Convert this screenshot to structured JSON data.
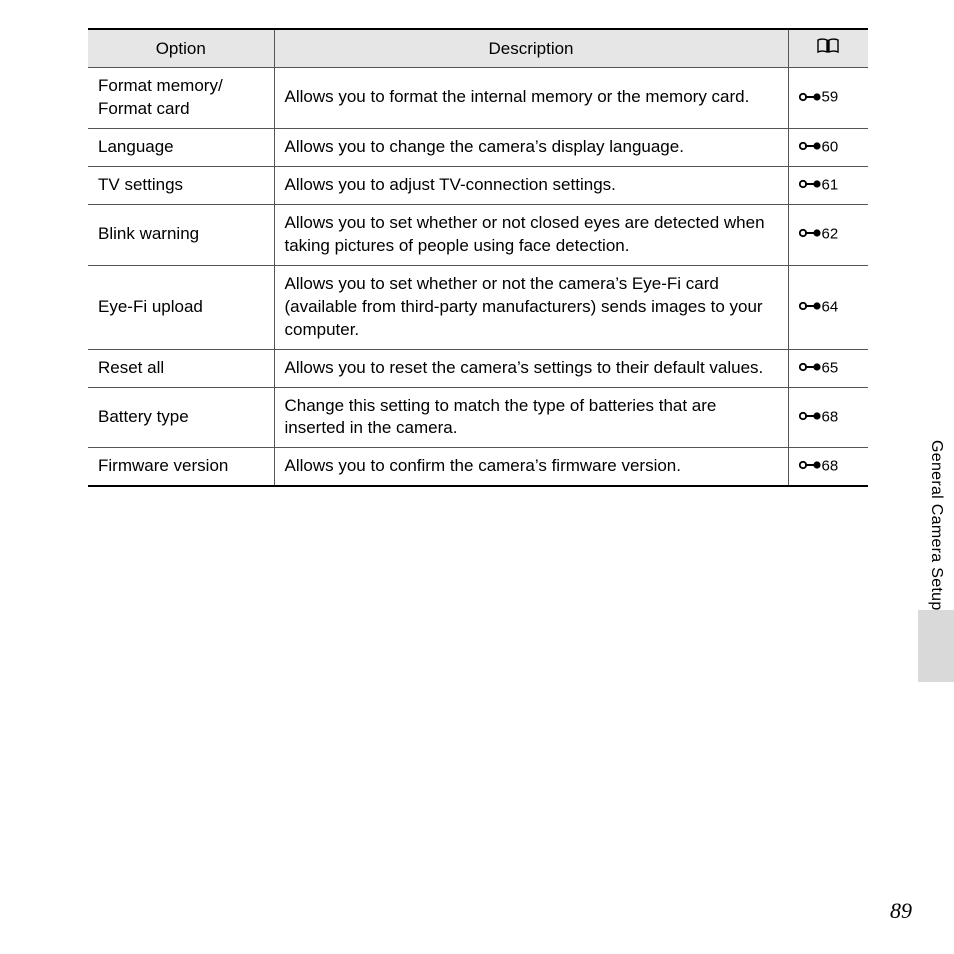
{
  "table": {
    "headers": {
      "option": "Option",
      "description": "Description"
    },
    "rows": [
      {
        "option": "Format memory/\nFormat card",
        "description": "Allows you to format the internal memory or the memory card.",
        "ref": "59"
      },
      {
        "option": "Language",
        "description": "Allows you to change the camera’s display language.",
        "ref": "60"
      },
      {
        "option": "TV settings",
        "description": "Allows you to adjust TV-connection settings.",
        "ref": "61"
      },
      {
        "option": "Blink warning",
        "description": "Allows you to set whether or not closed eyes are detected when taking pictures of people using face detection.",
        "ref": "62"
      },
      {
        "option": "Eye-Fi upload",
        "description": "Allows you to set whether or not the camera’s Eye-Fi card (available from third-party manufacturers) sends images to your computer.",
        "ref": "64"
      },
      {
        "option": "Reset all",
        "description": "Allows you to reset the camera’s settings to their default values.",
        "ref": "65"
      },
      {
        "option": "Battery type",
        "description": "Change this setting to match the type of batteries that are inserted in the camera.",
        "ref": "68"
      },
      {
        "option": "Firmware version",
        "description": "Allows you to confirm the camera’s firmware version.",
        "ref": "68"
      }
    ]
  },
  "sideLabel": "General Camera Setup",
  "pageNumber": "89",
  "colors": {
    "headerBg": "#e6e6e6",
    "tabBg": "#d9d9d9",
    "text": "#000000",
    "border": "#555555"
  }
}
